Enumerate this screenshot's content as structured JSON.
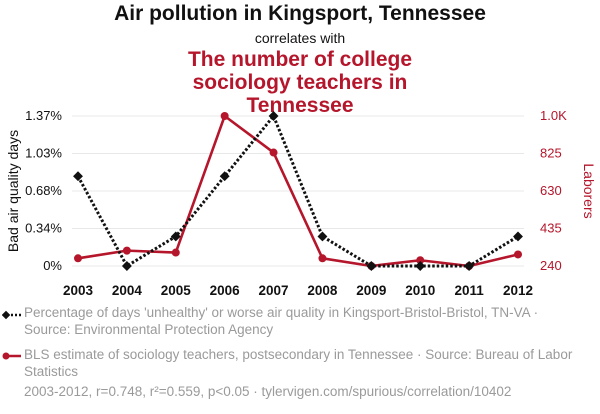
{
  "title_line1": "Air pollution in Kingsport, Tennessee",
  "title_line2": "correlates with",
  "title_line3": "The number of college sociology teachers in Tennessee",
  "colors": {
    "series1": "#111111",
    "series2": "#b5162b"
  },
  "chart_data": {
    "type": "line",
    "x": [
      "2003",
      "2004",
      "2005",
      "2006",
      "2007",
      "2008",
      "2009",
      "2010",
      "2011",
      "2012"
    ],
    "ylabel_left": "Bad air quality days",
    "ylabel_right": "Laborers",
    "yticks_left": [
      "0%",
      "0.34%",
      "0.68%",
      "1.03%",
      "1.37%"
    ],
    "yticks_right": [
      "240",
      "435",
      "630",
      "825",
      "1.0K"
    ],
    "ylim_left": [
      0,
      1.37
    ],
    "ylim_right": [
      240,
      1020
    ],
    "grid": true,
    "series": [
      {
        "name": "Percentage of days 'unhealthy' or worse air quality in Kingsport-Bristol-Bristol, TN-VA · Source: Environmental Protection Agency",
        "axis": "left",
        "style": "dotted",
        "marker": "diamond",
        "values": [
          0.82,
          0.0,
          0.27,
          0.82,
          1.37,
          0.27,
          0.0,
          0.0,
          0.0,
          0.27
        ]
      },
      {
        "name": "BLS estimate of sociology teachers, postsecondary in Tennessee · Source: Bureau of Labor Statistics",
        "axis": "right",
        "style": "solid",
        "marker": "circle",
        "values": [
          280,
          320,
          310,
          1020,
          830,
          280,
          240,
          270,
          240,
          300
        ]
      }
    ]
  },
  "legend": {
    "item1": "Percentage of days 'unhealthy' or worse air quality in Kingsport-Bristol-Bristol, TN-VA · Source: Environmental Protection Agency",
    "item2": "BLS estimate of sociology teachers, postsecondary in Tennessee · Source: Bureau of Labor Statistics"
  },
  "footer": "2003-2012, r=0.748, r²=0.559, p<0.05 · tylervigen.com/spurious/correlation/10402"
}
